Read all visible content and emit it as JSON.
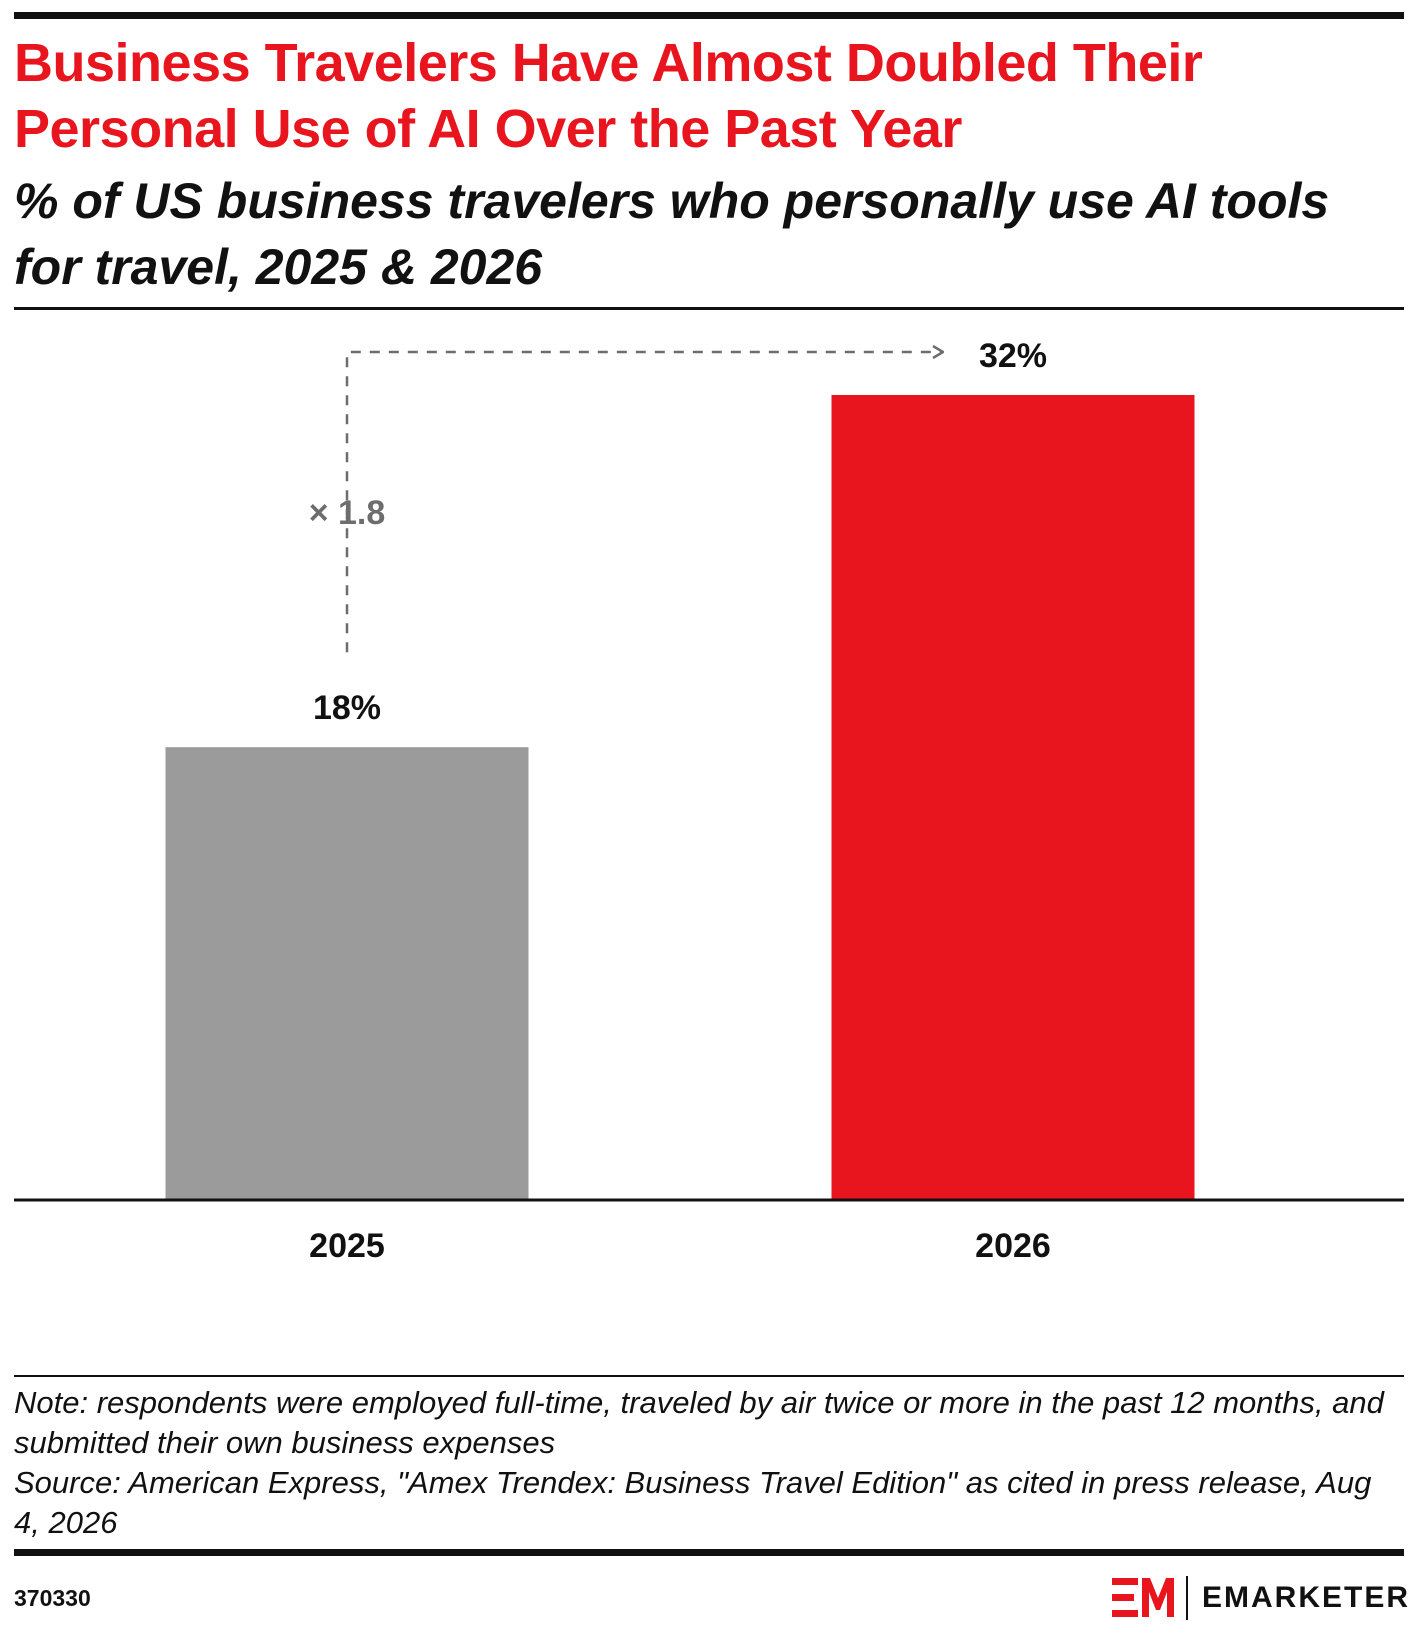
{
  "title": "Business Travelers Have Almost Doubled Their Personal Use of AI Over the Past Year",
  "subtitle": "% of US business travelers who personally use AI tools for travel, 2025 & 2026",
  "chart_data": {
    "type": "bar",
    "categories": [
      "2025",
      "2026"
    ],
    "values": [
      18,
      32
    ],
    "value_labels": [
      "18%",
      "32%"
    ],
    "bar_colors": [
      "#9b9b9b",
      "#e8141e"
    ],
    "annotation": "× 1.8",
    "ylim": [
      0,
      32
    ],
    "xlabel": "",
    "ylabel": "",
    "grid": false
  },
  "note": "Note: respondents were employed full-time, traveled by air twice or more in the past 12 months, and submitted their own business expenses",
  "source": "Source: American Express, \"Amex Trendex: Business Travel Edition\" as cited in press release, Aug 4, 2026",
  "chart_id": "370330",
  "brand": {
    "name": "EMARKETER",
    "accent_color": "#e8141e"
  }
}
